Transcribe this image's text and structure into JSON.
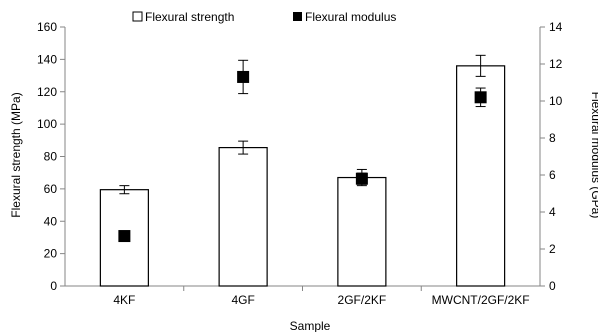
{
  "chart_data": {
    "type": "bar",
    "categories": [
      "4KF",
      "4GF",
      "2GF/2KF",
      "MWCNT/2GF/2KF"
    ],
    "xlabel": "Sample",
    "ylabel": "Flexural strength (MPa)",
    "y2label": "Flexural modulus (GPa)",
    "ylim": [
      0,
      160
    ],
    "y2lim": [
      0,
      14
    ],
    "yticks": [
      0,
      20,
      40,
      60,
      80,
      100,
      120,
      140,
      160
    ],
    "y2ticks": [
      0,
      2,
      4,
      6,
      8,
      10,
      12,
      14
    ],
    "legend_position": "top-center",
    "grid": false,
    "series": [
      {
        "name": "Flexural strength",
        "kind": "bar",
        "axis": "left",
        "fill": "#ffffff",
        "stroke": "#000000",
        "values": [
          59.5,
          85.5,
          67,
          136
        ],
        "errors": [
          2.5,
          4,
          5,
          6.5
        ]
      },
      {
        "name": "Flexural modulus",
        "kind": "marker",
        "axis": "right",
        "color": "#000000",
        "values": [
          2.7,
          11.3,
          5.8,
          10.2
        ],
        "errors": [
          0,
          0.9,
          0.3,
          0.5
        ]
      }
    ]
  }
}
